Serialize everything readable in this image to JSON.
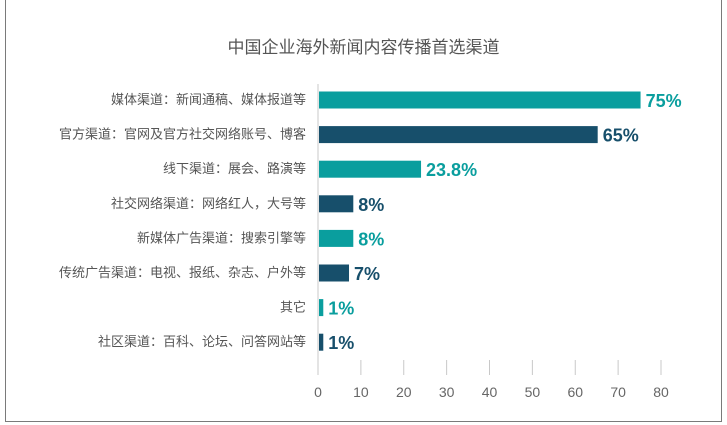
{
  "chart_data": {
    "type": "bar",
    "orientation": "horizontal",
    "title": "中国企业海外新闻内容传播首选渠道",
    "categories": [
      "媒体渠道：新闻通稿、媒体报道等",
      "官方渠道：官网及官方社交网络账号、博客",
      "线下渠道：展会、路演等",
      "社交网络渠道：网络红人，大号等",
      "新媒体广告渠道：搜索引擎等",
      "传统广告渠道：电视、报纸、杂志、户外等",
      "其它",
      "社区渠道：百科、论坛、问答网站等"
    ],
    "values": [
      75,
      65,
      23.8,
      8,
      8,
      7,
      1,
      1
    ],
    "value_labels": [
      "75%",
      "65%",
      "23.8%",
      "8%",
      "8%",
      "7%",
      "1%",
      "1%"
    ],
    "xlim": [
      0,
      80
    ],
    "xticks": [
      "0",
      "10",
      "20",
      "30",
      "40",
      "50",
      "60",
      "70",
      "80"
    ],
    "xlabel": "",
    "ylabel": "",
    "grid": false,
    "colors": [
      "#0a9e9e",
      "#174f6b"
    ]
  }
}
